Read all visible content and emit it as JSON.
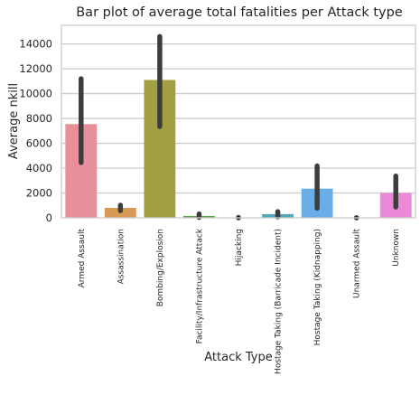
{
  "chart_data": {
    "type": "bar",
    "title": "Bar plot of average total fatalities per Attack type",
    "xlabel": "Attack Type",
    "ylabel": "Average nkill",
    "ylim": [
      0,
      15500
    ],
    "yticks": [
      0,
      2000,
      4000,
      6000,
      8000,
      10000,
      12000,
      14000
    ],
    "grid": true,
    "categories": [
      "Armed Assault",
      "Assassination",
      "Bombing/Explosion",
      "Facility/Infrastructure Attack",
      "Hijacking",
      "Hostage Taking (Barricade Incident)",
      "Hostage Taking (Kidnapping)",
      "Unarmed Assault",
      "Unknown"
    ],
    "values": [
      7550,
      800,
      11100,
      150,
      20,
      300,
      2350,
      10,
      2000
    ],
    "ci_low": [
      4450,
      580,
      7350,
      30,
      0,
      80,
      780,
      0,
      870
    ],
    "ci_high": [
      11200,
      1020,
      14600,
      320,
      40,
      500,
      4180,
      20,
      3370
    ],
    "colors": [
      "#e8909a",
      "#d69a55",
      "#a3a043",
      "#5aa34a",
      "#5aa6a0",
      "#53a7b8",
      "#6aaee8",
      "#b6a0ea",
      "#ec88d8"
    ]
  }
}
